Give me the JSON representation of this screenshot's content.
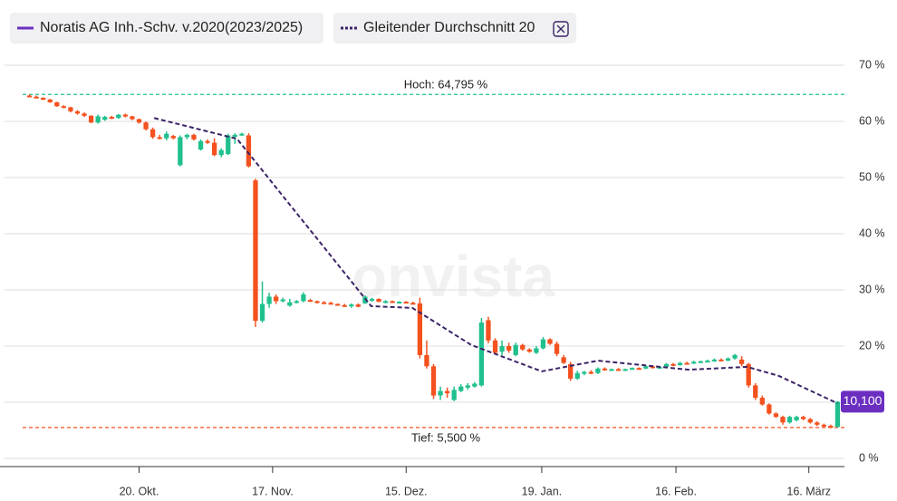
{
  "chart_data": {
    "type": "candlestick",
    "watermark": "onvista",
    "series": [
      {
        "name": "Noratis AG Inh.-Schv. v.2020(2023/2025)",
        "color": "#6b2fc0",
        "up_color": "#20c08e",
        "down_color": "#f4511e",
        "x": [
          0,
          1,
          2,
          3,
          4,
          5,
          6,
          7,
          8,
          9,
          10,
          11,
          12,
          13,
          14,
          15,
          16,
          17,
          18,
          19,
          20,
          21,
          22,
          23,
          24,
          25,
          26,
          27,
          28,
          29,
          30,
          31,
          32,
          33,
          34,
          35,
          36,
          37,
          38,
          39,
          40,
          41,
          42,
          43,
          44,
          45,
          46,
          47,
          48,
          49,
          50,
          51,
          52,
          53,
          54,
          55,
          56,
          57,
          58,
          59,
          60,
          61,
          62,
          63,
          64,
          65,
          66,
          67,
          68,
          69,
          70,
          71,
          72,
          73,
          74,
          75,
          76,
          77,
          78,
          79,
          80,
          81,
          82,
          83,
          84,
          85,
          86,
          87,
          88,
          89,
          90,
          91,
          92,
          93,
          94,
          95,
          96,
          97,
          98,
          99,
          100,
          101,
          102,
          103,
          104,
          105,
          106,
          107,
          108,
          109,
          110,
          111,
          112,
          113,
          114,
          115,
          116,
          117,
          118
        ],
        "open": [
          64.6,
          64.4,
          64.2,
          63.9,
          63.4,
          62.7,
          62.5,
          61.8,
          61.4,
          61.0,
          59.8,
          60.3,
          60.8,
          60.6,
          61.2,
          60.9,
          60.4,
          59.8,
          58.6,
          57.2,
          57.0,
          57.4,
          52.2,
          57.2,
          57.6,
          55.0,
          56.5,
          56.2,
          54.0,
          54.2,
          57.5,
          57.6,
          57.5,
          49.5,
          24.5,
          27.5,
          28.8,
          28.0,
          27.2,
          27.8,
          28.0,
          28.2,
          28.0,
          27.8,
          27.7,
          27.5,
          27.3,
          27.1,
          27.4,
          27.6,
          28.2,
          28.4,
          27.9,
          28.0,
          27.8,
          27.9,
          27.7,
          27.6,
          18.4,
          16.4,
          11.2,
          12.0,
          10.4,
          12.0,
          12.6,
          12.8,
          13.0,
          24.6,
          21.0,
          19.0,
          20.0,
          18.4,
          20.2,
          19.4,
          18.8,
          19.6,
          21.2,
          20.4,
          18.0,
          16.8,
          14.2,
          15.2,
          15.4,
          15.2,
          16.0,
          15.8,
          15.9,
          15.8,
          15.9,
          16.1,
          16.0,
          16.4,
          16.2,
          16.3,
          16.8,
          16.6,
          17.0,
          16.9,
          17.2,
          17.3,
          17.4,
          17.6,
          17.4,
          17.8,
          17.6,
          16.8,
          13.0,
          10.8,
          9.6,
          8.0,
          7.4,
          6.4,
          6.8,
          7.4,
          7.0,
          6.4,
          6.0,
          5.8,
          5.6
        ],
        "high": [
          64.8,
          64.6,
          64.3,
          64.0,
          63.5,
          62.9,
          62.6,
          62.0,
          61.6,
          61.1,
          61.2,
          61.0,
          61.0,
          61.3,
          61.4,
          61.0,
          60.5,
          60.0,
          58.9,
          57.6,
          58.2,
          57.6,
          57.5,
          57.8,
          57.8,
          56.8,
          56.8,
          57.0,
          55.2,
          57.8,
          57.9,
          58.0,
          57.9,
          49.8,
          31.5,
          29.5,
          29.2,
          28.6,
          28.4,
          28.2,
          29.6,
          28.4,
          28.1,
          28.0,
          27.9,
          27.6,
          27.5,
          27.6,
          27.6,
          29.0,
          28.6,
          28.5,
          28.2,
          28.1,
          28.0,
          28.0,
          27.9,
          28.6,
          21.0,
          16.8,
          12.8,
          12.6,
          12.8,
          13.2,
          13.4,
          13.6,
          25.0,
          25.2,
          21.4,
          21.0,
          20.6,
          20.6,
          20.4,
          19.6,
          20.0,
          21.6,
          21.4,
          20.8,
          18.4,
          17.2,
          15.6,
          15.6,
          15.7,
          16.2,
          16.2,
          16.0,
          16.1,
          16.0,
          16.2,
          16.2,
          16.6,
          16.6,
          16.4,
          17.0,
          17.0,
          17.2,
          17.2,
          17.4,
          17.4,
          17.6,
          17.8,
          17.8,
          18.0,
          18.6,
          18.2,
          17.0,
          13.4,
          11.2,
          9.8,
          8.2,
          7.6,
          7.6,
          7.6,
          7.6,
          7.2,
          6.6,
          6.2,
          6.0,
          10.2
        ],
        "low": [
          64.3,
          64.1,
          63.8,
          63.3,
          62.6,
          62.4,
          61.6,
          61.2,
          60.8,
          59.7,
          59.6,
          60.1,
          60.4,
          60.5,
          60.7,
          60.2,
          59.6,
          58.4,
          56.9,
          56.8,
          56.6,
          56.8,
          52.0,
          56.8,
          56.6,
          54.8,
          56.0,
          53.8,
          53.6,
          54.0,
          56.0,
          57.4,
          51.8,
          23.4,
          24.2,
          26.8,
          27.5,
          27.8,
          27.0,
          27.6,
          27.8,
          27.9,
          27.6,
          27.5,
          27.4,
          27.2,
          27.0,
          26.8,
          26.9,
          27.5,
          27.9,
          27.8,
          27.6,
          27.7,
          27.6,
          27.6,
          27.5,
          17.8,
          16.0,
          10.6,
          10.4,
          10.8,
          10.2,
          11.8,
          12.2,
          12.6,
          12.8,
          20.5,
          18.5,
          18.4,
          18.8,
          18.2,
          19.2,
          18.8,
          18.6,
          19.4,
          20.2,
          18.2,
          16.8,
          13.8,
          14.0,
          14.8,
          15.0,
          15.0,
          15.6,
          15.6,
          15.7,
          15.6,
          15.8,
          15.9,
          15.9,
          16.0,
          16.0,
          16.1,
          16.4,
          16.5,
          16.8,
          16.8,
          17.0,
          17.1,
          17.2,
          17.3,
          17.3,
          17.6,
          16.4,
          12.6,
          10.4,
          9.4,
          7.8,
          7.2,
          6.0,
          6.2,
          6.6,
          6.8,
          6.2,
          5.8,
          5.6,
          5.5,
          5.5
        ],
        "close": [
          64.4,
          64.2,
          63.9,
          63.4,
          62.7,
          62.5,
          61.8,
          61.4,
          61.0,
          59.8,
          60.9,
          60.8,
          60.6,
          61.2,
          60.9,
          60.4,
          59.8,
          58.6,
          57.2,
          57.0,
          57.8,
          57.0,
          57.2,
          57.6,
          56.8,
          56.5,
          56.2,
          54.0,
          54.9,
          57.5,
          57.6,
          57.8,
          52.0,
          24.5,
          27.5,
          28.8,
          28.0,
          28.3,
          27.8,
          28.0,
          29.2,
          28.0,
          27.8,
          27.7,
          27.5,
          27.3,
          27.1,
          27.4,
          27.0,
          28.8,
          28.4,
          27.9,
          28.0,
          27.8,
          27.9,
          27.7,
          27.6,
          18.4,
          16.4,
          11.2,
          12.0,
          11.6,
          12.2,
          12.8,
          13.0,
          13.3,
          24.2,
          21.0,
          18.8,
          20.0,
          19.2,
          20.2,
          19.4,
          19.0,
          19.6,
          21.2,
          20.4,
          18.6,
          17.0,
          14.2,
          15.2,
          15.4,
          15.2,
          16.0,
          15.8,
          15.9,
          15.8,
          15.9,
          16.1,
          16.0,
          16.4,
          16.2,
          16.3,
          16.8,
          16.6,
          17.0,
          16.9,
          17.2,
          17.3,
          17.4,
          17.6,
          17.4,
          17.8,
          18.4,
          16.8,
          13.0,
          10.8,
          9.6,
          8.0,
          7.4,
          6.4,
          7.4,
          7.4,
          7.0,
          6.4,
          6.0,
          5.8,
          5.6,
          10.1
        ]
      },
      {
        "name": "Gleitender Durchschnitt 20",
        "color": "#3b2466",
        "type": "line",
        "dashed": true,
        "x": [
          18.2,
          30.3,
          49.9,
          55.9,
          64.5,
          74.8,
          83,
          96.2,
          104.8,
          109.4,
          118
        ],
        "values": [
          60.6,
          56.9,
          27.1,
          26.8,
          20.2,
          15.5,
          17.4,
          15.8,
          16.3,
          14.7,
          9.8
        ]
      }
    ],
    "xlim": [
      -1,
      119
    ],
    "xticks": [
      {
        "value": 16,
        "label": "20. Okt."
      },
      {
        "value": 35.5,
        "label": "17. Nov."
      },
      {
        "value": 55,
        "label": "15. Dez."
      },
      {
        "value": 74.8,
        "label": "19. Jan."
      },
      {
        "value": 94.4,
        "label": "16. Feb."
      },
      {
        "value": 113.8,
        "label": "16. März"
      }
    ],
    "ylim": [
      0,
      70
    ],
    "yticks": [
      {
        "value": 0,
        "label": "0 %"
      },
      {
        "value": 10,
        "label": "10 %"
      },
      {
        "value": 20,
        "label": "20 %"
      },
      {
        "value": 30,
        "label": "30 %"
      },
      {
        "value": 40,
        "label": "40 %"
      },
      {
        "value": 50,
        "label": "50 %"
      },
      {
        "value": 60,
        "label": "60 %"
      },
      {
        "value": 70,
        "label": "70 %"
      }
    ],
    "grid": true,
    "high_line": {
      "value": 64.795,
      "label": "Hoch: 64,795 %",
      "color": "#20c08e"
    },
    "low_line": {
      "value": 5.5,
      "label": "Tief: 5,500 %",
      "color": "#f4511e"
    },
    "last_price": {
      "value": 10.1,
      "label": "10,100",
      "color": "#6b2fc0"
    }
  }
}
